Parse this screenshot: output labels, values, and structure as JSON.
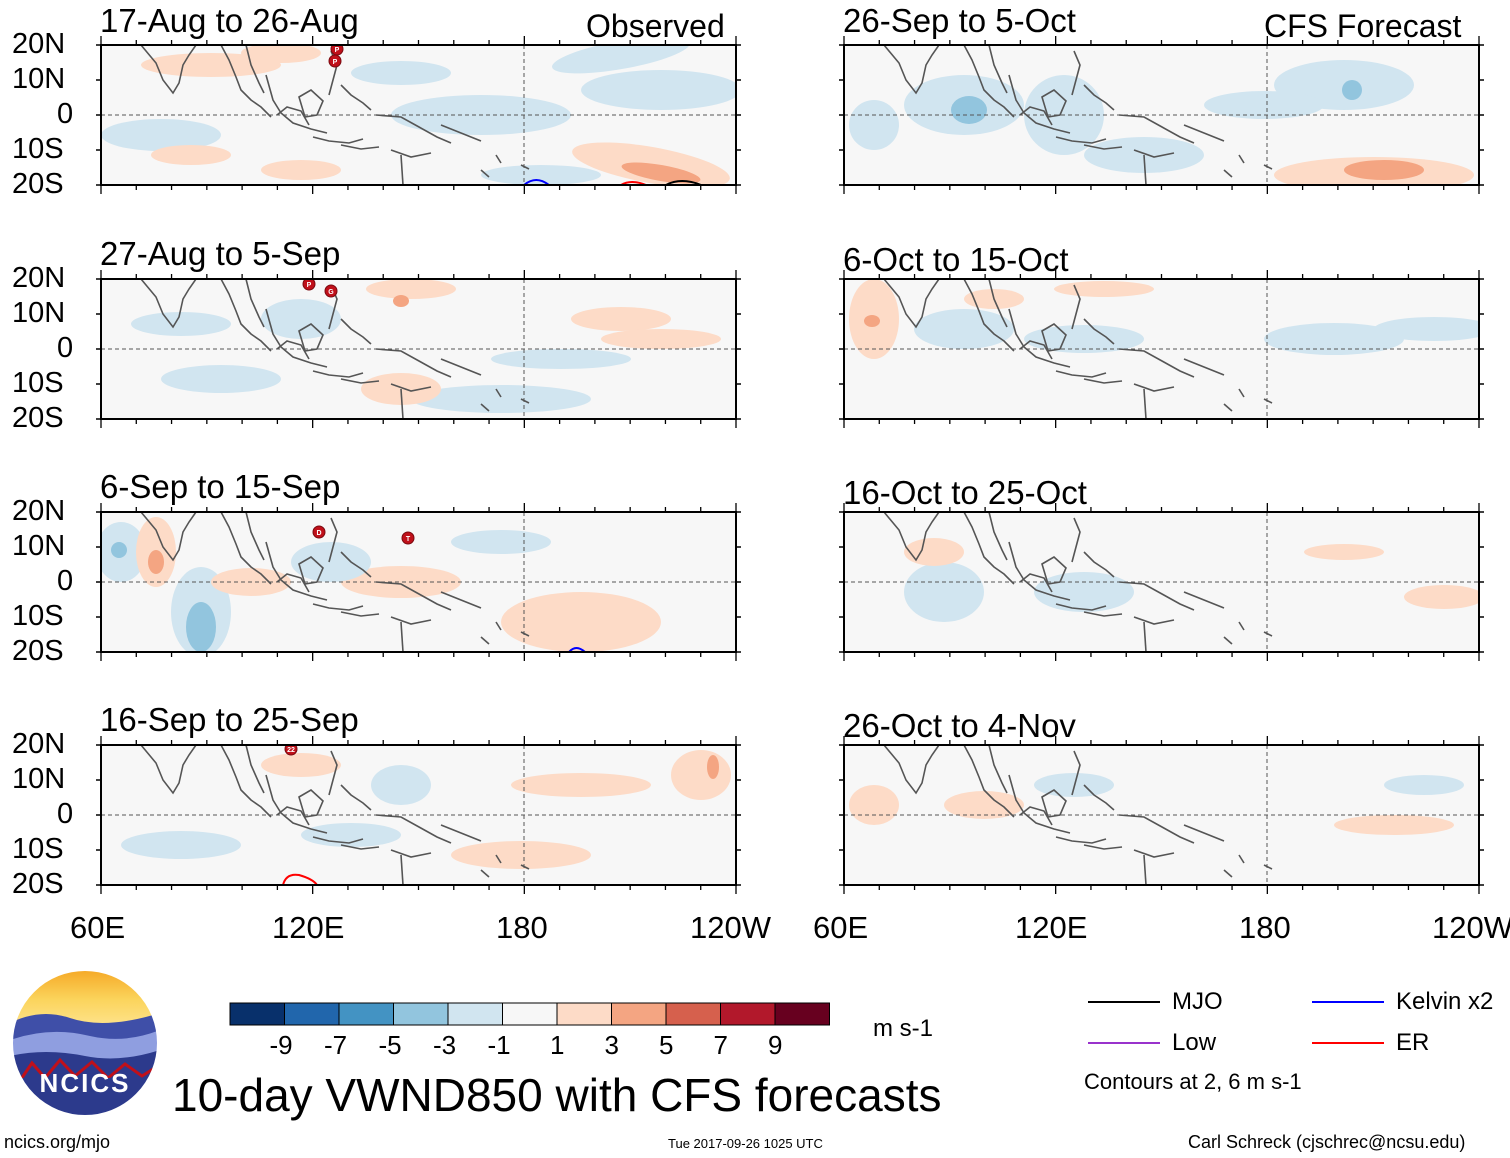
{
  "header": {
    "left_label": "Observed",
    "right_label": "CFS Forecast"
  },
  "panels": {
    "observed": [
      {
        "title": "17-Aug to 26-Aug",
        "markers": [
          "P",
          "P"
        ]
      },
      {
        "title": "27-Aug to 5-Sep",
        "markers": [
          "P",
          "G"
        ]
      },
      {
        "title": "6-Sep to 15-Sep",
        "markers": [
          "D",
          "T"
        ]
      },
      {
        "title": "16-Sep to 25-Sep",
        "markers": [
          "22"
        ]
      }
    ],
    "forecast": [
      {
        "title": "26-Sep to 5-Oct"
      },
      {
        "title": "6-Oct to 15-Oct"
      },
      {
        "title": "16-Oct to 25-Oct"
      },
      {
        "title": "26-Oct to 4-Nov"
      }
    ]
  },
  "axes": {
    "lat_labels": [
      "20N",
      "10N",
      "0",
      "10S",
      "20S"
    ],
    "lon_labels": [
      "60E",
      "120E",
      "180",
      "120W"
    ]
  },
  "colorbar": {
    "ticks": [
      "-9",
      "-7",
      "-5",
      "-3",
      "-1",
      "1",
      "3",
      "5",
      "7",
      "9"
    ],
    "colors": [
      "#08306b",
      "#2166ac",
      "#4393c3",
      "#92c5de",
      "#d1e5f0",
      "#f7f7f7",
      "#fddbc7",
      "#f4a582",
      "#d6604d",
      "#b2182b",
      "#67001f"
    ],
    "units": "m s-1"
  },
  "legend": {
    "items": [
      {
        "label": "MJO",
        "color": "#000000"
      },
      {
        "label": "Kelvin x2",
        "color": "#0000ff"
      },
      {
        "label": "Low",
        "color": "#9932cc"
      },
      {
        "label": "ER",
        "color": "#ff0000"
      }
    ],
    "contours_note": "Contours at 2, 6 m s-1"
  },
  "footer": {
    "main_title": "10-day VWND850 with CFS forecasts",
    "website": "ncics.org/mjo",
    "timestamp": "Tue 2017-09-26 1025 UTC",
    "credit": "Carl Schreck (cjschrec@ncsu.edu)",
    "logo_text": "NCICS"
  },
  "colors": {
    "land": "#555555",
    "shade_pos_light": "#fddbc7",
    "shade_pos_mid": "#f4a582",
    "shade_neg_light": "#d1e5f0",
    "shade_neg_mid": "#92c5de"
  }
}
